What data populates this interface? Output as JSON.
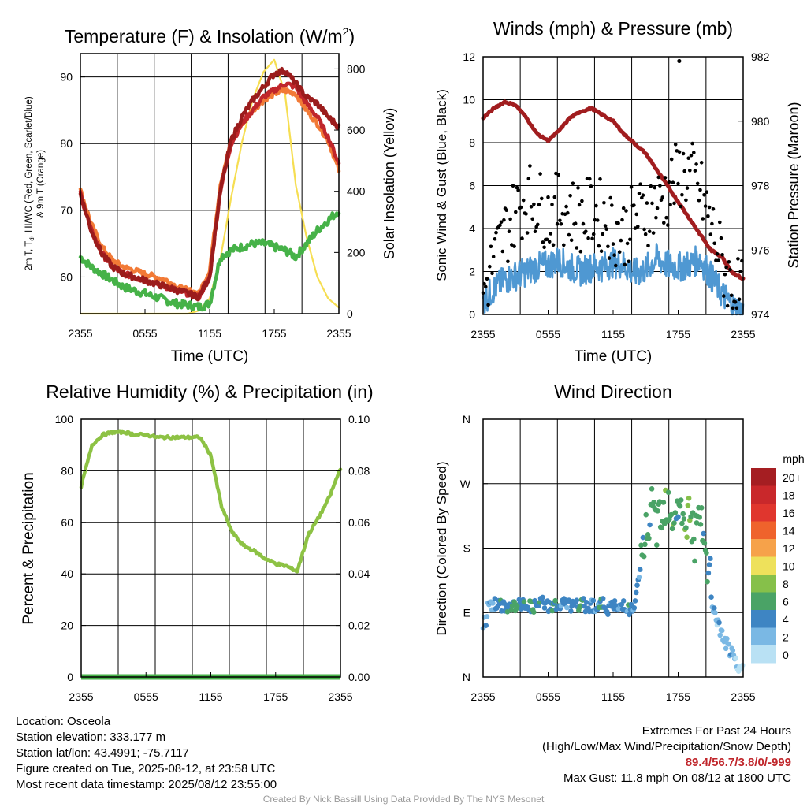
{
  "titles": {
    "temp": "Temperature (F) & Insolation (W/m",
    "temp_sup": "2",
    "temp_close": ")",
    "winds": "Winds (mph) & Pressure (mb)",
    "rh": "Relative Humidity (%) & Precipitation (in)",
    "dir": "Wind Direction"
  },
  "axis_labels": {
    "temp_left_1": "2m T, T",
    "temp_left_sub": "d",
    "temp_left_2": ", HI/WC (Red, Green, Scarlet/Blue)",
    "temp_left_3": "& 9m T (Orange)",
    "temp_right": "Solar Insolation (Yellow)",
    "winds_left": "Sonic Wind & Gust (Blue, Black)",
    "winds_right": "Station Pressure (Maroon)",
    "rh_left": "Percent & Precipitation",
    "dir_left": "Direction (Colored By Speed)",
    "time": "Time (UTC)"
  },
  "legend": {
    "unit": "mph",
    "labels": [
      "20+",
      "18",
      "16",
      "14",
      "12",
      "10",
      "8",
      "6",
      "4",
      "2",
      "0"
    ],
    "colors": [
      "#a51e22",
      "#c9282b",
      "#e0362e",
      "#ef632c",
      "#f6a24a",
      "#eee15b",
      "#86c04a",
      "#4aa366",
      "#3e85c3",
      "#7ab8e4",
      "#b9e1f4"
    ]
  },
  "colors": {
    "temp": "#c0262b",
    "dewpoint": "#46b248",
    "heat_index": "#9b1c1c",
    "temp_9m": "#f27a36",
    "insolation": "#f6de52",
    "sonic_wind": "#4f98d2",
    "gust": "#000000",
    "pressure": "#a11d1f",
    "rh": "#8dc244",
    "precip": "#46b248",
    "extremes": "#c0262b"
  },
  "chart_data": [
    {
      "type": "line",
      "title": "Temperature (F) & Insolation (W/m2)",
      "xlabel": "Time (UTC)",
      "ylabel": "2m T, Td, HI/WC (Red, Green, Scarlet/Blue) & 9m T (Orange)",
      "y2label": "Solar Insolation (Yellow)",
      "x_ticks": [
        "2355",
        "0555",
        "1155",
        "1755",
        "2355"
      ],
      "ylim": [
        54.5,
        93.5
      ],
      "y_ticks": [
        60,
        70,
        80,
        90
      ],
      "y2lim": [
        0,
        850
      ],
      "y2_ticks": [
        0,
        200,
        400,
        600,
        800
      ],
      "x_hours": [
        0,
        1,
        2,
        3,
        4,
        5,
        6,
        7,
        8,
        9,
        10,
        11,
        12,
        13,
        14,
        15,
        16,
        17,
        18,
        19,
        20,
        21,
        22,
        23,
        24
      ],
      "series": [
        {
          "name": "2m T",
          "values": [
            72.5,
            67,
            63.5,
            61.5,
            60.5,
            60,
            59.5,
            59,
            58.5,
            58,
            57.5,
            57,
            60,
            73,
            80,
            83,
            85,
            87,
            88,
            89,
            88.5,
            86,
            84,
            81,
            77
          ]
        },
        {
          "name": "9m T",
          "values": [
            73,
            68,
            64.5,
            62.5,
            61.5,
            61,
            60.5,
            60,
            59.5,
            58.5,
            58,
            57.5,
            61,
            74,
            80.5,
            83,
            85,
            86.5,
            87.5,
            88,
            87.5,
            85,
            83,
            80.5,
            76
          ]
        },
        {
          "name": "HI/WC",
          "values": [
            72.5,
            67,
            63.5,
            61.5,
            60.5,
            60,
            59.5,
            59,
            58.5,
            58,
            57.5,
            57,
            60,
            73,
            80.5,
            84,
            86.5,
            88.5,
            90.5,
            91,
            89,
            87,
            86,
            84,
            82.5
          ]
        },
        {
          "name": "Td",
          "values": [
            63,
            61.5,
            60.5,
            59.5,
            58.5,
            58,
            57.5,
            57,
            56.5,
            56,
            55.8,
            55.5,
            56,
            63,
            64,
            64.5,
            65,
            65,
            64.5,
            64,
            63,
            65,
            67,
            68.5,
            70
          ]
        },
        {
          "name": "Solar Insolation",
          "values": [
            0,
            0,
            0,
            0,
            0,
            0,
            0,
            0,
            0,
            0,
            0,
            10,
            50,
            180,
            380,
            560,
            700,
            790,
            830,
            720,
            420,
            250,
            120,
            50,
            20
          ]
        }
      ]
    },
    {
      "type": "line",
      "title": "Winds (mph) & Pressure (mb)",
      "xlabel": "Time (UTC)",
      "ylabel": "Sonic Wind & Gust (Blue, Black)",
      "y2label": "Station Pressure (Maroon)",
      "x_ticks": [
        "2355",
        "0555",
        "1155",
        "1755",
        "2355"
      ],
      "ylim": [
        0,
        12
      ],
      "y_ticks": [
        0,
        2,
        4,
        6,
        8,
        10,
        12
      ],
      "y2lim": [
        974,
        982
      ],
      "y2_ticks": [
        974,
        976,
        978,
        980,
        982
      ],
      "max_gust": {
        "x_hour": 18.1,
        "value": 11.8
      },
      "x_hours": [
        0,
        1,
        2,
        3,
        4,
        5,
        6,
        7,
        8,
        9,
        10,
        11,
        12,
        13,
        14,
        15,
        16,
        17,
        18,
        19,
        20,
        21,
        22,
        23,
        24
      ],
      "series": [
        {
          "name": "Sonic Wind",
          "values": [
            0.6,
            1.2,
            1.6,
            1.8,
            2.0,
            2.2,
            2.3,
            2.5,
            2.2,
            2.0,
            2.2,
            2.2,
            2.4,
            2.3,
            1.9,
            2.1,
            2.6,
            2.3,
            2.2,
            2.3,
            2.6,
            1.8,
            1.0,
            0.4,
            0.1
          ]
        },
        {
          "name": "Gust",
          "values": [
            1.0,
            2.5,
            3.8,
            4.8,
            5.5,
            5.2,
            4.6,
            5.0,
            4.8,
            4.5,
            4.8,
            4.6,
            4.0,
            3.8,
            4.5,
            4.8,
            5.2,
            5.6,
            6.5,
            6.6,
            5.8,
            4.2,
            2.5,
            1.2,
            0.8
          ]
        },
        {
          "name": "Station Pressure",
          "values": [
            980.1,
            980.4,
            980.6,
            980.5,
            980.1,
            979.6,
            979.4,
            979.7,
            980.1,
            980.3,
            980.4,
            980.2,
            980.0,
            979.6,
            979.3,
            979.0,
            978.5,
            978.0,
            977.5,
            977.0,
            976.5,
            976.0,
            975.8,
            975.3,
            975.1
          ]
        }
      ]
    },
    {
      "type": "line",
      "title": "Relative Humidity (%) & Precipitation (in)",
      "ylabel": "Percent & Precipitation",
      "x_ticks": [
        "2355",
        "0555",
        "1155",
        "1755",
        "2355"
      ],
      "ylim": [
        0,
        100
      ],
      "y_ticks": [
        0,
        20,
        40,
        60,
        80,
        100
      ],
      "y2lim": [
        0,
        0.1
      ],
      "y2_ticks": [
        "0.00",
        "0.02",
        "0.04",
        "0.06",
        "0.08",
        "0.10"
      ],
      "x_hours": [
        0,
        1,
        2,
        3,
        4,
        5,
        6,
        7,
        8,
        9,
        10,
        11,
        12,
        13,
        14,
        15,
        16,
        17,
        18,
        19,
        20,
        21,
        22,
        23,
        24
      ],
      "series": [
        {
          "name": "Relative Humidity",
          "values": [
            74,
            90,
            94,
            95,
            95,
            94,
            94,
            93,
            93,
            93,
            93,
            93,
            86,
            66,
            56,
            51,
            49,
            46,
            44,
            43,
            41,
            55,
            62,
            70,
            81
          ]
        },
        {
          "name": "Precipitation",
          "values": [
            0,
            0,
            0,
            0,
            0,
            0,
            0,
            0,
            0,
            0,
            0,
            0,
            0,
            0,
            0,
            0,
            0,
            0,
            0,
            0,
            0,
            0,
            0,
            0,
            0
          ]
        }
      ]
    },
    {
      "type": "scatter",
      "title": "Wind Direction",
      "ylabel": "Direction (Colored By Speed)",
      "x_ticks": [
        "2355",
        "0555",
        "1155",
        "1755",
        "2355"
      ],
      "y_ticks": [
        "N",
        "E",
        "S",
        "W",
        "N"
      ],
      "ylim_degrees": [
        0,
        360
      ],
      "points": [
        {
          "x_hour": 0.2,
          "dir": 75,
          "speed": 1
        },
        {
          "x_hour": 0.5,
          "dir": 100,
          "speed": 1
        },
        {
          "x_hour": 1.0,
          "dir": 102,
          "speed": 2
        },
        {
          "x_hour": 1.5,
          "dir": 98,
          "speed": 2
        },
        {
          "x_hour": 2.0,
          "dir": 100,
          "speed": 2
        },
        {
          "x_hour": 2.5,
          "dir": 96,
          "speed": 2
        },
        {
          "x_hour": 3.0,
          "dir": 101,
          "speed": 3
        },
        {
          "x_hour": 3.5,
          "dir": 99,
          "speed": 2
        },
        {
          "x_hour": 4.0,
          "dir": 103,
          "speed": 2
        },
        {
          "x_hour": 4.5,
          "dir": 97,
          "speed": 3
        },
        {
          "x_hour": 5.0,
          "dir": 100,
          "speed": 2
        },
        {
          "x_hour": 5.5,
          "dir": 104,
          "speed": 2
        },
        {
          "x_hour": 6.0,
          "dir": 99,
          "speed": 2
        },
        {
          "x_hour": 6.5,
          "dir": 101,
          "speed": 3
        },
        {
          "x_hour": 7.0,
          "dir": 98,
          "speed": 2
        },
        {
          "x_hour": 7.5,
          "dir": 102,
          "speed": 2
        },
        {
          "x_hour": 8.0,
          "dir": 100,
          "speed": 2
        },
        {
          "x_hour": 8.5,
          "dir": 97,
          "speed": 2
        },
        {
          "x_hour": 9.0,
          "dir": 103,
          "speed": 3
        },
        {
          "x_hour": 9.5,
          "dir": 99,
          "speed": 2
        },
        {
          "x_hour": 10.0,
          "dir": 101,
          "speed": 2
        },
        {
          "x_hour": 10.5,
          "dir": 98,
          "speed": 2
        },
        {
          "x_hour": 11.0,
          "dir": 102,
          "speed": 2
        },
        {
          "x_hour": 11.5,
          "dir": 96,
          "speed": 2
        },
        {
          "x_hour": 12.0,
          "dir": 100,
          "speed": 2
        },
        {
          "x_hour": 12.5,
          "dir": 94,
          "speed": 2
        },
        {
          "x_hour": 13.0,
          "dir": 104,
          "speed": 2
        },
        {
          "x_hour": 13.5,
          "dir": 92,
          "speed": 2
        },
        {
          "x_hour": 14.0,
          "dir": 98,
          "speed": 2
        },
        {
          "x_hour": 14.5,
          "dir": 150,
          "speed": 2
        },
        {
          "x_hour": 15.0,
          "dir": 200,
          "speed": 3
        },
        {
          "x_hour": 15.5,
          "dir": 230,
          "speed": 3
        },
        {
          "x_hour": 16.0,
          "dir": 215,
          "speed": 3
        },
        {
          "x_hour": 16.5,
          "dir": 240,
          "speed": 3
        },
        {
          "x_hour": 17.0,
          "dir": 250,
          "speed": 3
        },
        {
          "x_hour": 17.5,
          "dir": 225,
          "speed": 3
        },
        {
          "x_hour": 18.0,
          "dir": 245,
          "speed": 3
        },
        {
          "x_hour": 18.5,
          "dir": 205,
          "speed": 3
        },
        {
          "x_hour": 19.0,
          "dir": 235,
          "speed": 4
        },
        {
          "x_hour": 19.5,
          "dir": 190,
          "speed": 3
        },
        {
          "x_hour": 20.0,
          "dir": 220,
          "speed": 3
        },
        {
          "x_hour": 20.5,
          "dir": 170,
          "speed": 3
        },
        {
          "x_hour": 21.0,
          "dir": 130,
          "speed": 2
        },
        {
          "x_hour": 21.5,
          "dir": 80,
          "speed": 1
        },
        {
          "x_hour": 22.0,
          "dir": 60,
          "speed": 1
        },
        {
          "x_hour": 22.5,
          "dir": 45,
          "speed": 1
        },
        {
          "x_hour": 23.0,
          "dir": 30,
          "speed": 1
        },
        {
          "x_hour": 23.5,
          "dir": 10,
          "speed": 0
        }
      ]
    }
  ],
  "footer": {
    "location": "Location: Osceola",
    "elevation": "Station elevation: 333.177 m",
    "latlon": "Station lat/lon: 43.4991; -75.7117",
    "created": "Figure created on Tue, 2025-08-12, at 23:58 UTC",
    "recent": "Most recent data timestamp: 2025/08/12 23:55:00",
    "extremes_title": "Extremes For Past 24 Hours",
    "extremes_legend": "(High/Low/Max Wind/Precipitation/Snow Depth)",
    "extremes_values": "89.4/56.7/3.8/0/-999",
    "max_gust": "Max Gust: 11.8 mph On 08/12 at 1800 UTC",
    "credit": "Created By Nick Bassill Using Data Provided By The NYS Mesonet"
  }
}
